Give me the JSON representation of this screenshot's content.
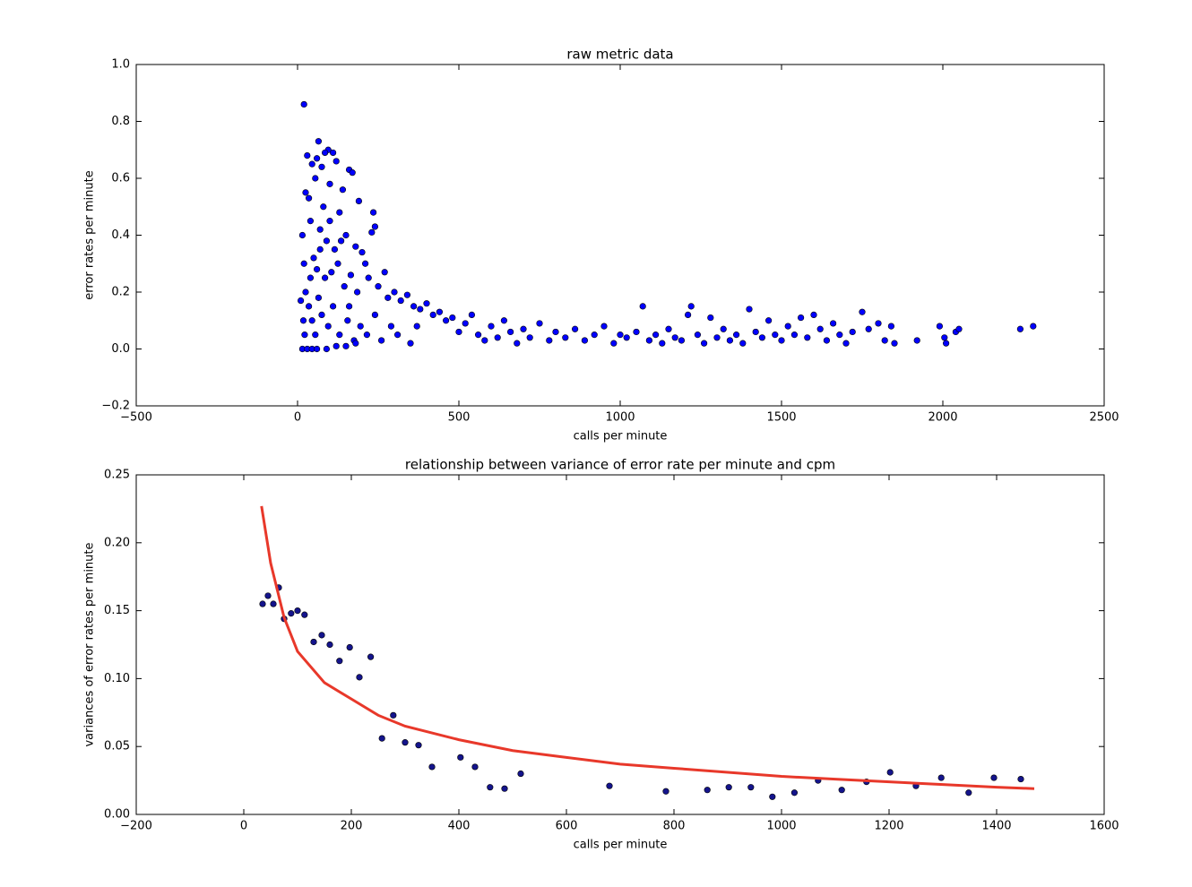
{
  "chart_data": [
    {
      "type": "scatter",
      "title": "raw metric data",
      "xlabel": "calls per minute",
      "ylabel": "error rates per minute",
      "color": "#0000ff",
      "xlim": [
        -500,
        2500
      ],
      "xticks": [
        {
          "value": -500,
          "label": "−500"
        },
        0,
        500,
        1000,
        1500,
        2000,
        2500
      ],
      "ylim": [
        -0.2,
        1.0
      ],
      "yticks": [
        {
          "value": -0.2,
          "label": "−0.2"
        },
        {
          "value": 0.0,
          "label": "0.0"
        },
        0.2,
        0.4,
        0.6,
        0.8,
        {
          "value": 1.0,
          "label": "1.0"
        }
      ],
      "x": [
        20,
        65,
        30,
        95,
        85,
        110,
        60,
        45,
        75,
        120,
        160,
        170,
        55,
        100,
        140,
        190,
        25,
        35,
        80,
        130,
        235,
        230,
        240,
        15,
        40,
        70,
        90,
        115,
        150,
        180,
        200,
        210,
        20,
        50,
        60,
        85,
        105,
        125,
        145,
        165,
        185,
        220,
        250,
        270,
        280,
        300,
        320,
        340,
        360,
        380,
        400,
        420,
        440,
        460,
        480,
        25,
        35,
        45,
        55,
        65,
        75,
        95,
        110,
        130,
        155,
        175,
        195,
        215,
        240,
        260,
        290,
        310,
        350,
        370,
        15,
        30,
        45,
        60,
        90,
        120,
        150,
        180,
        10,
        18,
        22,
        40,
        70,
        100,
        135,
        160,
        500,
        520,
        540,
        560,
        580,
        600,
        620,
        640,
        660,
        680,
        700,
        720,
        750,
        780,
        800,
        830,
        860,
        890,
        920,
        950,
        980,
        1000,
        1020,
        1050,
        1070,
        1090,
        1110,
        1130,
        1150,
        1170,
        1190,
        1210,
        1220,
        1240,
        1260,
        1280,
        1300,
        1320,
        1340,
        1360,
        1380,
        1400,
        1420,
        1440,
        1460,
        1480,
        1500,
        1520,
        1540,
        1560,
        1580,
        1600,
        1620,
        1640,
        1660,
        1680,
        1700,
        1720,
        1750,
        1770,
        1800,
        1820,
        1840,
        1850,
        1920,
        1990,
        2005,
        2010,
        2040,
        2050,
        2240,
        2280
      ],
      "values": [
        0.86,
        0.73,
        0.68,
        0.7,
        0.69,
        0.69,
        0.67,
        0.65,
        0.64,
        0.66,
        0.63,
        0.62,
        0.6,
        0.58,
        0.56,
        0.52,
        0.55,
        0.53,
        0.5,
        0.48,
        0.48,
        0.41,
        0.43,
        0.4,
        0.45,
        0.42,
        0.38,
        0.35,
        0.4,
        0.36,
        0.34,
        0.3,
        0.3,
        0.32,
        0.28,
        0.25,
        0.27,
        0.3,
        0.22,
        0.26,
        0.2,
        0.25,
        0.22,
        0.27,
        0.18,
        0.2,
        0.17,
        0.19,
        0.15,
        0.14,
        0.16,
        0.12,
        0.13,
        0.1,
        0.11,
        0.2,
        0.15,
        0.1,
        0.05,
        0.18,
        0.12,
        0.08,
        0.15,
        0.05,
        0.1,
        0.03,
        0.08,
        0.05,
        0.12,
        0.03,
        0.08,
        0.05,
        0.02,
        0.08,
        0.0,
        0.0,
        0.0,
        0.0,
        0.0,
        0.01,
        0.01,
        0.02,
        0.17,
        0.1,
        0.05,
        0.25,
        0.35,
        0.45,
        0.38,
        0.15,
        0.06,
        0.09,
        0.12,
        0.05,
        0.03,
        0.08,
        0.04,
        0.1,
        0.06,
        0.02,
        0.07,
        0.04,
        0.09,
        0.03,
        0.06,
        0.04,
        0.07,
        0.03,
        0.05,
        0.08,
        0.02,
        0.05,
        0.04,
        0.06,
        0.15,
        0.03,
        0.05,
        0.02,
        0.07,
        0.04,
        0.03,
        0.12,
        0.15,
        0.05,
        0.02,
        0.11,
        0.04,
        0.07,
        0.03,
        0.05,
        0.02,
        0.14,
        0.06,
        0.04,
        0.1,
        0.05,
        0.03,
        0.08,
        0.05,
        0.11,
        0.04,
        0.12,
        0.07,
        0.03,
        0.09,
        0.05,
        0.02,
        0.06,
        0.13,
        0.07,
        0.09,
        0.03,
        0.08,
        0.02,
        0.03,
        0.08,
        0.04,
        0.02,
        0.06,
        0.07,
        0.07,
        0.08
      ]
    },
    {
      "type": "scatter",
      "title": "relationship between variance of error rate per minute and cpm",
      "xlabel": "calls per minute",
      "ylabel": "variances of error rates per minute",
      "xlim": [
        -200,
        1600
      ],
      "xticks": [
        {
          "value": -200,
          "label": "−200"
        },
        0,
        200,
        400,
        600,
        800,
        1000,
        1200,
        1400,
        1600
      ],
      "ylim": [
        0,
        0.25
      ],
      "yticks": [
        {
          "value": 0,
          "label": "0.00"
        },
        0.05,
        {
          "value": 0.1,
          "label": "0.10"
        },
        0.15,
        {
          "value": 0.2,
          "label": "0.20"
        },
        0.25
      ],
      "series": [
        {
          "type": "scatter",
          "color": "#14148c",
          "x": [
            35,
            45,
            55,
            65,
            75,
            88,
            100,
            113,
            130,
            145,
            160,
            178,
            197,
            215,
            236,
            257,
            278,
            300,
            325,
            350,
            403,
            430,
            458,
            485,
            515,
            680,
            785,
            862,
            902,
            943,
            983,
            1024,
            1068,
            1112,
            1158,
            1202,
            1250,
            1297,
            1348,
            1395,
            1445
          ],
          "values": [
            0.155,
            0.161,
            0.155,
            0.167,
            0.144,
            0.148,
            0.15,
            0.147,
            0.127,
            0.132,
            0.125,
            0.113,
            0.123,
            0.101,
            0.116,
            0.056,
            0.073,
            0.053,
            0.051,
            0.035,
            0.042,
            0.035,
            0.02,
            0.019,
            0.03,
            0.021,
            0.017,
            0.018,
            0.02,
            0.02,
            0.013,
            0.016,
            0.025,
            0.018,
            0.024,
            0.031,
            0.021,
            0.027,
            0.016,
            0.027,
            0.026
          ]
        },
        {
          "type": "line",
          "color": "#e8382a",
          "x": [
            33,
            50,
            75,
            100,
            150,
            200,
            250,
            300,
            400,
            500,
            600,
            700,
            800,
            900,
            1000,
            1100,
            1200,
            1300,
            1400,
            1470
          ],
          "values": [
            0.227,
            0.185,
            0.145,
            0.12,
            0.097,
            0.085,
            0.073,
            0.065,
            0.055,
            0.047,
            0.042,
            0.037,
            0.034,
            0.031,
            0.028,
            0.026,
            0.024,
            0.022,
            0.02,
            0.019
          ]
        }
      ]
    }
  ]
}
